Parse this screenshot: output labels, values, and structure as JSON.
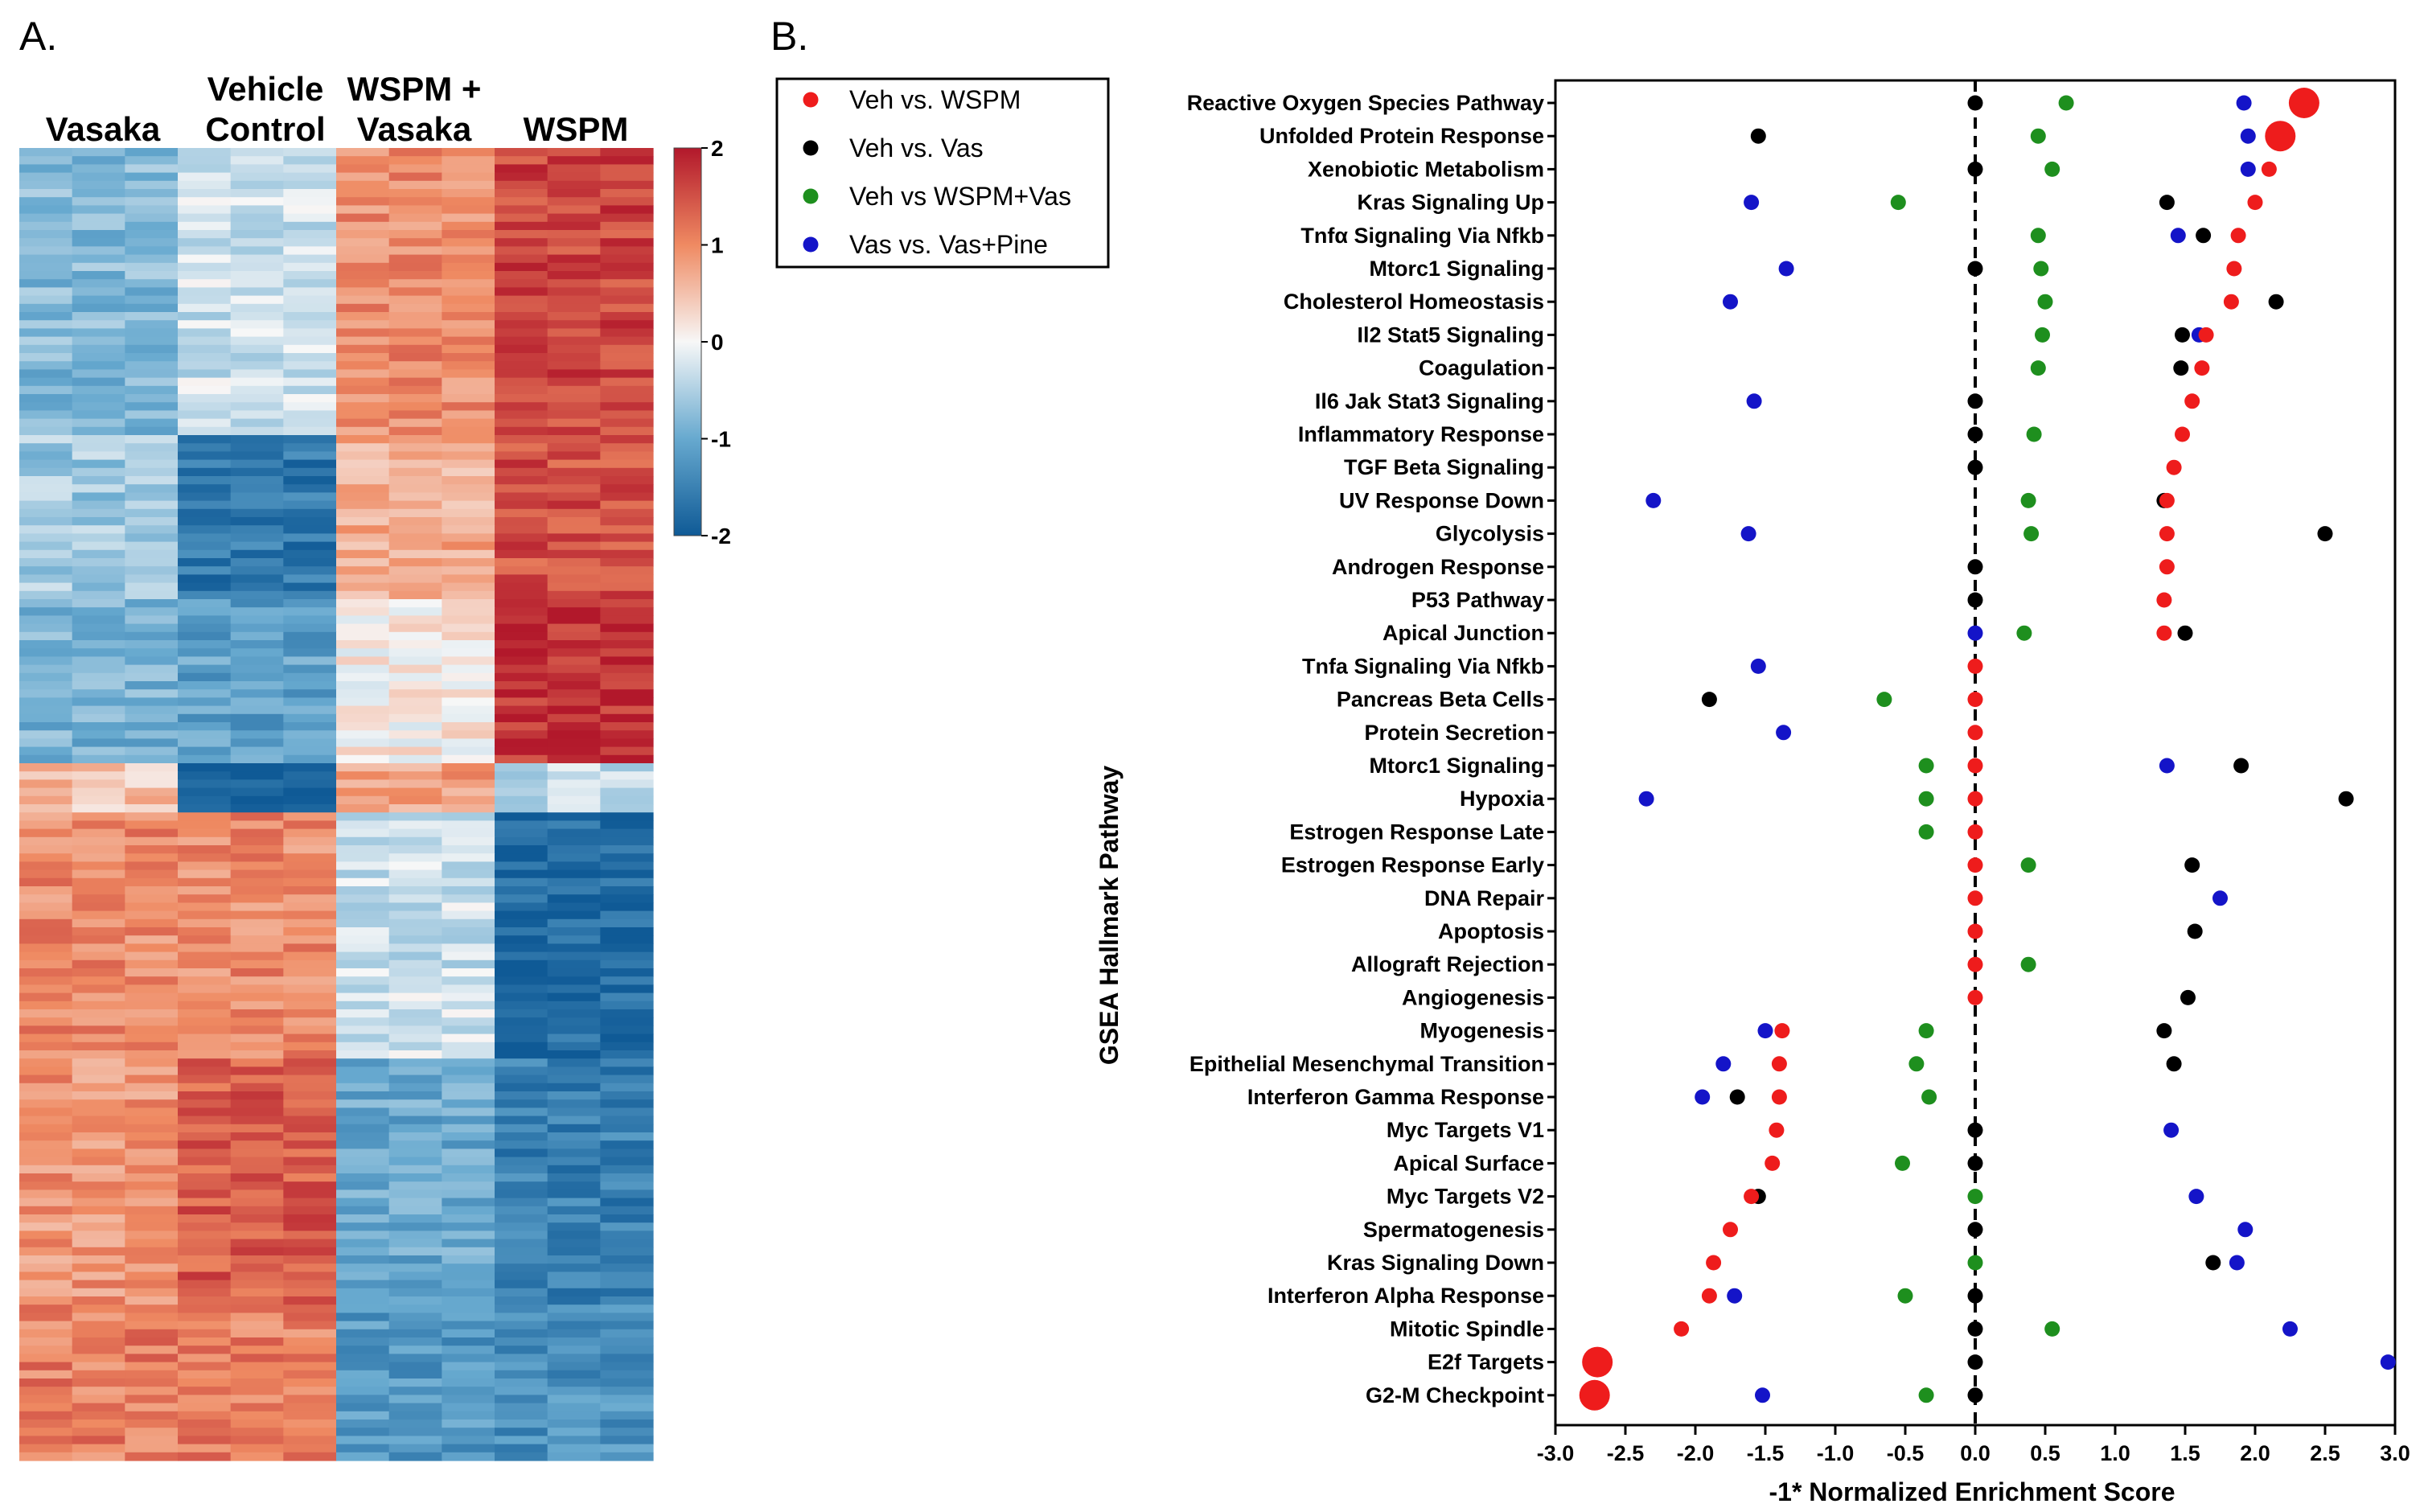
{
  "panel_a": {
    "letter": "A.",
    "columns": [
      {
        "line1": "Vasaka",
        "line2": ""
      },
      {
        "line1": "Vehicle",
        "line2": "Control"
      },
      {
        "line1": "WSPM +",
        "line2": "Vasaka"
      },
      {
        "line1": "WSPM",
        "line2": ""
      }
    ],
    "colorbar": {
      "min": -2,
      "max": 2,
      "ticks": [
        "2",
        "1",
        "0",
        "-1",
        "-2"
      ]
    },
    "heatmap_blocks": [
      {
        "rows": 0.35,
        "values": [
          -0.8,
          -0.3,
          1.0,
          1.6
        ]
      },
      {
        "rows": 0.2,
        "values": [
          -0.6,
          -1.6,
          0.7,
          1.5
        ]
      },
      {
        "rows": 0.2,
        "values": [
          -0.9,
          -1.1,
          0.1,
          1.8
        ]
      },
      {
        "rows": 0.06,
        "values": [
          0.5,
          -2.0,
          0.8,
          -0.4
        ]
      },
      {
        "rows": 0.3,
        "values": [
          1.0,
          1.0,
          -0.3,
          -1.8
        ]
      },
      {
        "rows": 0.3,
        "values": [
          0.9,
          1.4,
          -1.0,
          -1.5
        ]
      },
      {
        "rows": 0.2,
        "values": [
          1.1,
          1.1,
          -1.2,
          -1.3
        ]
      }
    ]
  },
  "panel_b": {
    "letter": "B.",
    "colors": {
      "red": "#ee1c1c",
      "black": "#000000",
      "green": "#1e8f1e",
      "blue": "#1414c8"
    }
  },
  "chart_data": {
    "type": "scatter",
    "title": "",
    "xlabel": "-1* Normalized  Enrichment  Score",
    "ylabel": "GSEA Hallmark Pathway",
    "xlim": [
      -3.0,
      3.0
    ],
    "x_ticks": [
      "-3.0",
      "-2.5",
      "-2.0",
      "-1.5",
      "-1.0",
      "-0.5",
      "0.0",
      "0.5",
      "1.0",
      "1.5",
      "2.0",
      "2.5",
      "3.0"
    ],
    "legend_position": "top-left outside plot",
    "categories": [
      "Reactive Oxygen Species Pathway",
      "Unfolded Protein Response",
      "Xenobiotic Metabolism",
      "Kras Signaling Up",
      "Tnfα Signaling Via Nfkb",
      "Mtorc1 Signaling",
      "Cholesterol Homeostasis",
      "Il2 Stat5 Signaling",
      "Coagulation",
      "Il6 Jak Stat3 Signaling",
      "Inflammatory Response",
      "TGF Beta Signaling",
      "UV Response Down",
      "Glycolysis",
      "Androgen Response",
      "P53 Pathway",
      "Apical Junction",
      "Tnfa Signaling Via Nfkb",
      "Pancreas Beta Cells",
      "Protein Secretion",
      "Mtorc1 Signaling",
      "Hypoxia",
      "Estrogen Response Late",
      "Estrogen Response Early",
      "DNA Repair",
      "Apoptosis",
      "Allograft Rejection",
      "Angiogenesis",
      "Myogenesis",
      "Epithelial Mesenchymal Transition",
      "Interferon Gamma Response",
      "Myc Targets V1",
      "Apical Surface",
      "Myc Targets V2",
      "Spermatogenesis",
      "Kras Signaling Down",
      "Interferon Alpha Response",
      "Mitotic Spindle",
      "E2f Targets",
      "G2-M Checkpoint"
    ],
    "series": [
      {
        "name": "Veh vs. WSPM",
        "color": "red",
        "values": [
          2.35,
          2.18,
          2.1,
          2.0,
          1.88,
          1.85,
          1.83,
          1.65,
          1.62,
          1.55,
          1.48,
          1.42,
          1.37,
          1.37,
          1.37,
          1.35,
          1.35,
          0,
          0,
          0,
          0,
          0,
          0,
          0,
          0,
          0,
          0,
          0,
          -1.38,
          -1.4,
          -1.4,
          -1.42,
          -1.45,
          -1.6,
          -1.75,
          -1.87,
          -1.9,
          -2.1,
          -2.7,
          -2.72
        ],
        "sizes": [
          2,
          2,
          1,
          1,
          1,
          1,
          1,
          1,
          1,
          1,
          1,
          1,
          1,
          1,
          1,
          1,
          1,
          1,
          1,
          1,
          1,
          1,
          1,
          1,
          1,
          1,
          1,
          1,
          1,
          1,
          1,
          1,
          1,
          1,
          1,
          1,
          1,
          1,
          2,
          2
        ]
      },
      {
        "name": "Veh vs. Vas",
        "color": "black",
        "values": [
          0,
          -1.55,
          0,
          1.37,
          1.63,
          0,
          2.15,
          1.48,
          1.47,
          0,
          0,
          0,
          1.35,
          2.5,
          0,
          0,
          1.5,
          null,
          -1.9,
          null,
          1.9,
          2.65,
          null,
          1.55,
          null,
          1.57,
          null,
          1.52,
          1.35,
          1.42,
          -1.7,
          0,
          0,
          -1.55,
          0,
          1.7,
          0,
          0,
          0,
          0
        ],
        "sizes": [
          1,
          1,
          1,
          1,
          1,
          1,
          1,
          1,
          1,
          1,
          1,
          1,
          1,
          1,
          1,
          1,
          1,
          1,
          1,
          1,
          1,
          1,
          1,
          1,
          1,
          1,
          1,
          1,
          1,
          1,
          1,
          1,
          1,
          1,
          1,
          1,
          1,
          1,
          1,
          1
        ]
      },
      {
        "name": "Veh vs WSPM+Vas",
        "color": "green",
        "values": [
          0.65,
          0.45,
          0.55,
          -0.55,
          0.45,
          0.47,
          0.5,
          0.48,
          0.45,
          null,
          0.42,
          null,
          0.38,
          0.4,
          null,
          null,
          0.35,
          null,
          -0.65,
          null,
          -0.35,
          -0.35,
          -0.35,
          0.38,
          null,
          null,
          0.38,
          null,
          -0.35,
          -0.42,
          -0.33,
          null,
          -0.52,
          0,
          null,
          0,
          -0.5,
          0.55,
          null,
          -0.35
        ],
        "sizes": [
          1,
          1,
          1,
          1,
          1,
          1,
          1,
          1,
          1,
          1,
          1,
          1,
          1,
          1,
          1,
          1,
          1,
          1,
          1,
          1,
          1,
          1,
          1,
          1,
          1,
          1,
          1,
          1,
          1,
          1,
          1,
          1,
          1,
          1,
          1,
          1,
          1,
          1,
          1,
          1
        ]
      },
      {
        "name": "Vas vs. Vas+Pine",
        "color": "blue",
        "values": [
          1.92,
          1.95,
          1.95,
          -1.6,
          1.45,
          -1.35,
          -1.75,
          1.6,
          null,
          -1.58,
          null,
          null,
          -2.3,
          -1.62,
          null,
          null,
          0,
          -1.55,
          null,
          -1.37,
          1.37,
          -2.35,
          null,
          null,
          1.75,
          null,
          null,
          null,
          -1.5,
          -1.8,
          -1.95,
          1.4,
          null,
          1.58,
          1.93,
          1.87,
          -1.72,
          2.25,
          2.95,
          -1.52
        ],
        "sizes": [
          1,
          1,
          1,
          1,
          1,
          1,
          1,
          1,
          1,
          1,
          1,
          1,
          1,
          1,
          1,
          1,
          1,
          1,
          1,
          1,
          1,
          1,
          1,
          1,
          1,
          1,
          1,
          1,
          1,
          1,
          1,
          1,
          1,
          1,
          1,
          1,
          1,
          1,
          1,
          1
        ]
      }
    ]
  }
}
